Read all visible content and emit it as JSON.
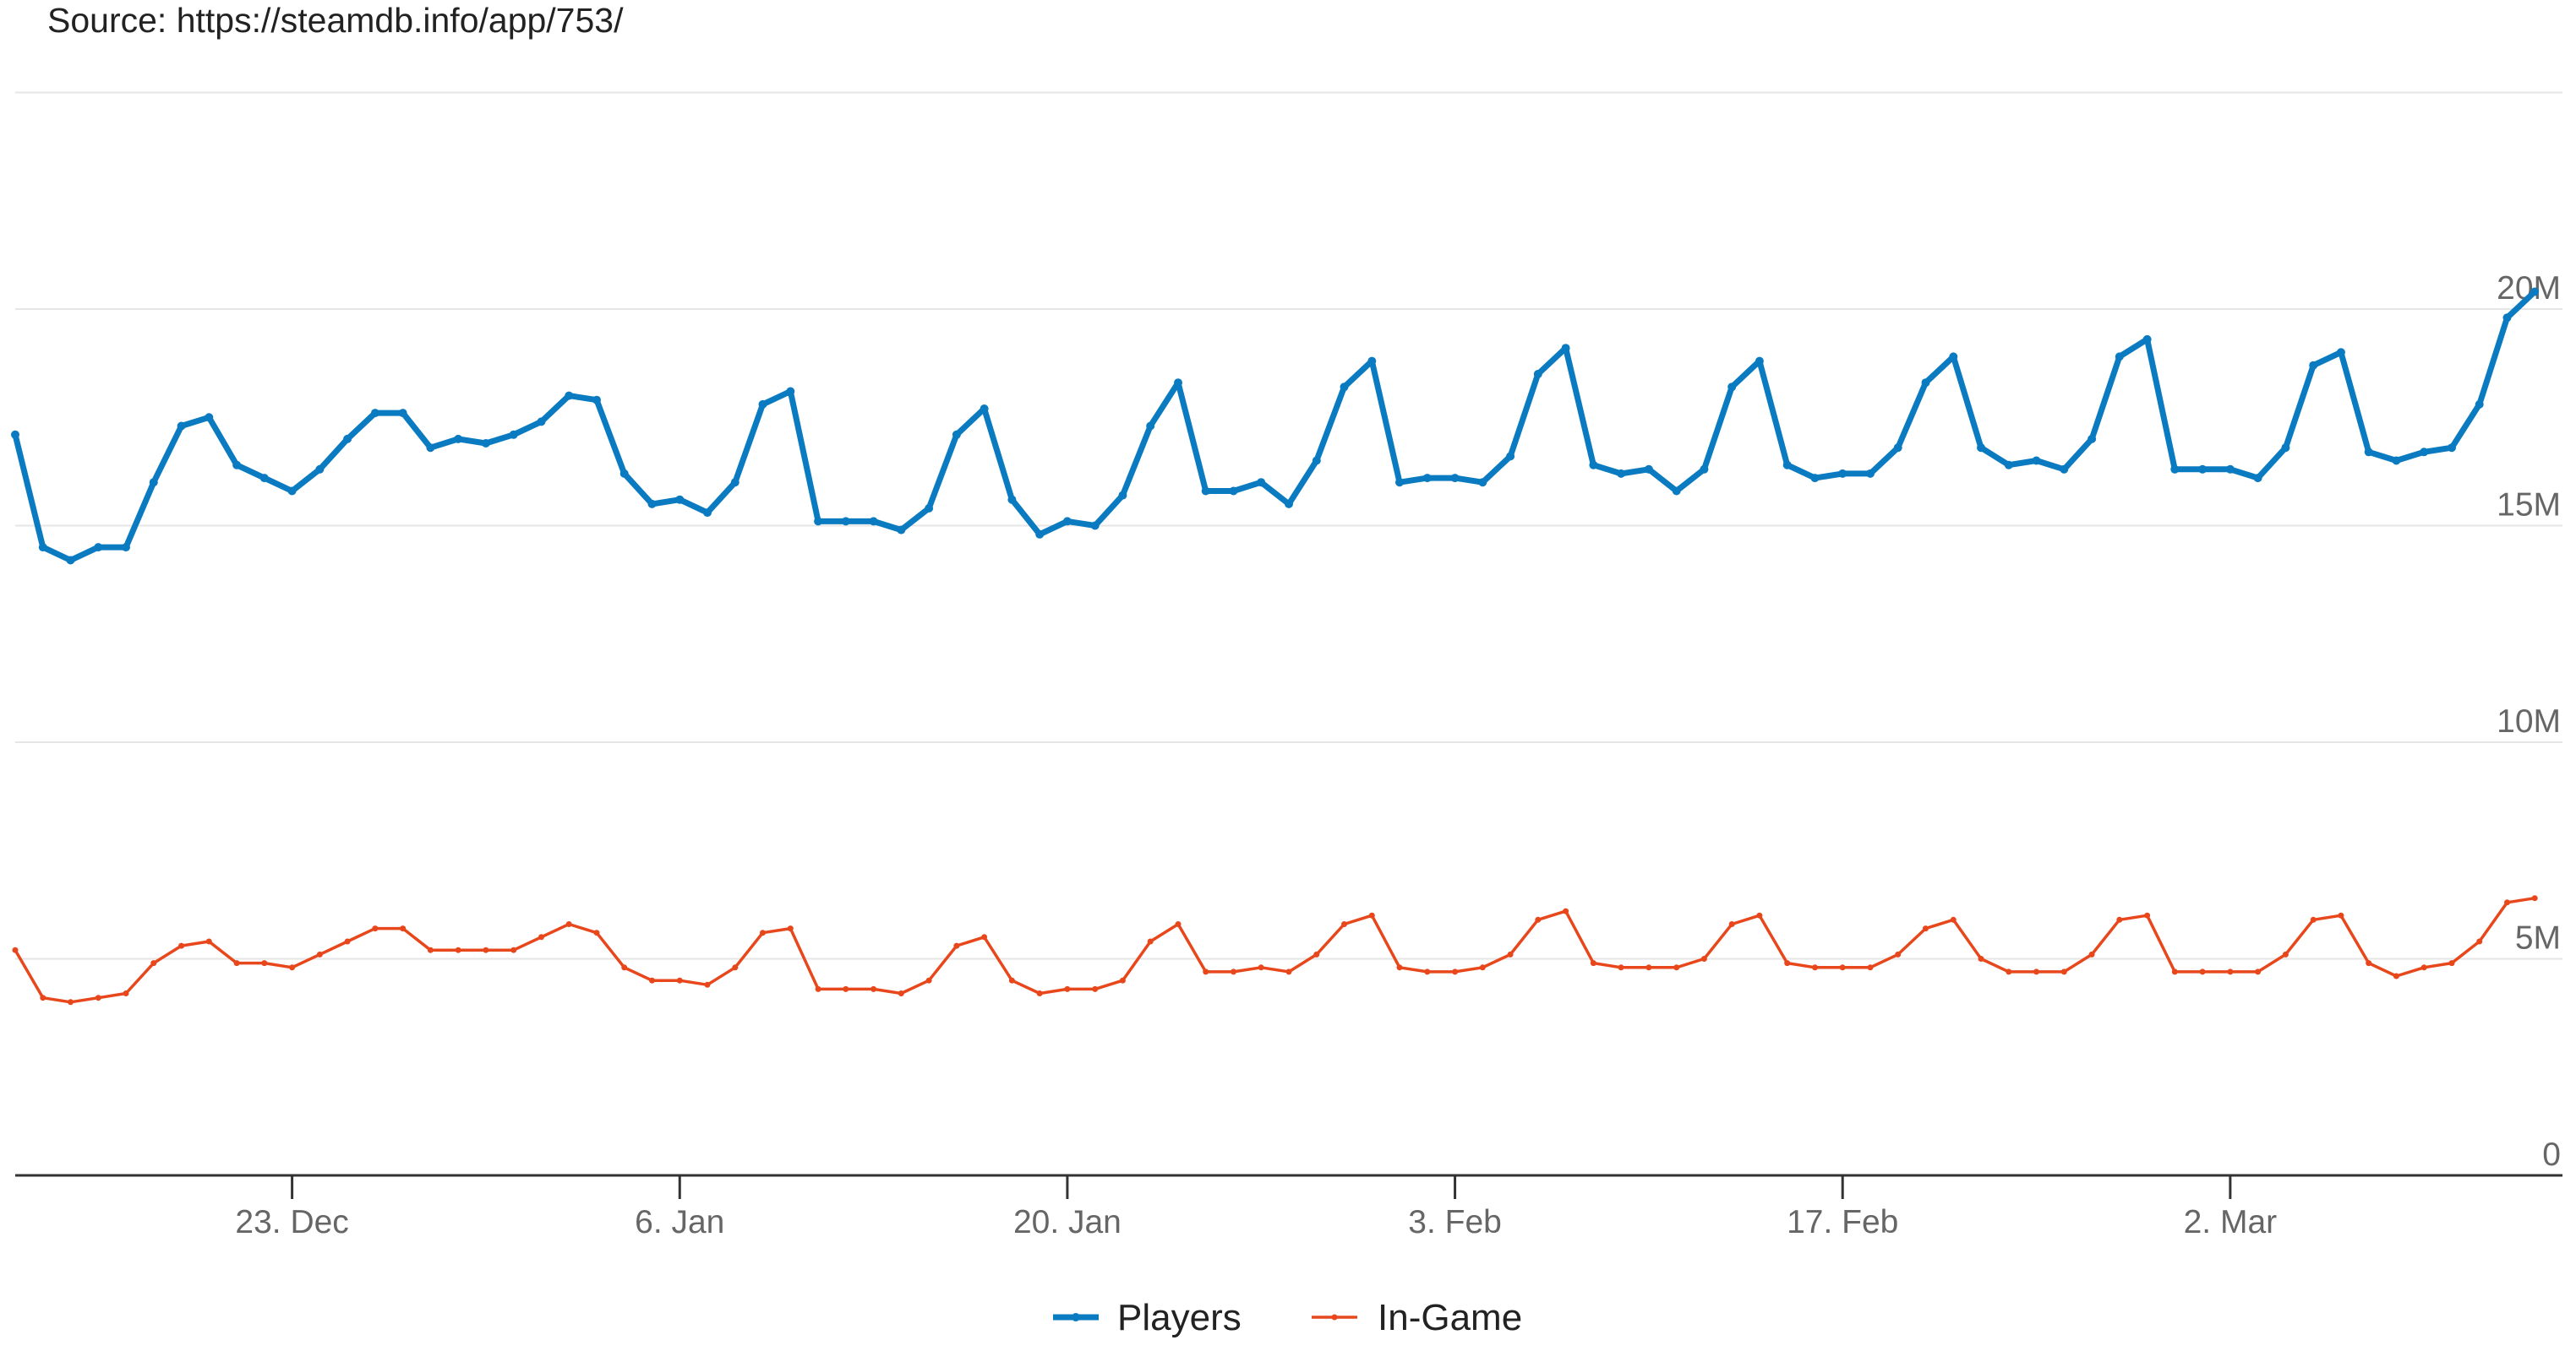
{
  "source_text": "Source: https://steamdb.info/app/753/",
  "colors": {
    "players": "#0b7bc1",
    "in_game": "#e8471c",
    "grid": "#e6e6e6",
    "axis": "#333333"
  },
  "chart_data": {
    "type": "line",
    "title": "",
    "xlabel": "",
    "ylabel": "",
    "x_start": "2019-12-13",
    "x_end": "2020-03-14",
    "x_ticks": [
      {
        "label": "23. Dec",
        "date": "2019-12-23"
      },
      {
        "label": "6. Jan",
        "date": "2020-01-06"
      },
      {
        "label": "20. Jan",
        "date": "2020-01-20"
      },
      {
        "label": "3. Feb",
        "date": "2020-02-03"
      },
      {
        "label": "17. Feb",
        "date": "2020-02-17"
      },
      {
        "label": "2. Mar",
        "date": "2020-03-02"
      }
    ],
    "y_ticks": [
      {
        "label": "0",
        "value": 0
      },
      {
        "label": "5M",
        "value": 5000000
      },
      {
        "label": "10M",
        "value": 10000000
      },
      {
        "label": "15M",
        "value": 15000000
      },
      {
        "label": "20M",
        "value": 20000000
      }
    ],
    "ylim": [
      0,
      25000000
    ],
    "grid": true,
    "legend_position": "bottom",
    "series": [
      {
        "name": "Players",
        "key": "players",
        "points": [
          [
            "2019-12-13",
            17.1
          ],
          [
            "2019-12-14",
            14.5
          ],
          [
            "2019-12-15",
            14.2
          ],
          [
            "2019-12-16",
            14.5
          ],
          [
            "2019-12-17",
            14.5
          ],
          [
            "2019-12-18",
            16.0
          ],
          [
            "2019-12-19",
            17.3
          ],
          [
            "2019-12-20",
            17.5
          ],
          [
            "2019-12-21",
            16.4
          ],
          [
            "2019-12-22",
            16.1
          ],
          [
            "2019-12-23",
            15.8
          ],
          [
            "2019-12-24",
            16.3
          ],
          [
            "2019-12-25",
            17.0
          ],
          [
            "2019-12-26",
            17.6
          ],
          [
            "2019-12-27",
            17.6
          ],
          [
            "2019-12-28",
            16.8
          ],
          [
            "2019-12-29",
            17.0
          ],
          [
            "2019-12-30",
            16.9
          ],
          [
            "2019-12-31",
            17.1
          ],
          [
            "2020-01-01",
            17.4
          ],
          [
            "2020-01-02",
            18.0
          ],
          [
            "2020-01-03",
            17.9
          ],
          [
            "2020-01-04",
            16.2
          ],
          [
            "2020-01-05",
            15.5
          ],
          [
            "2020-01-06",
            15.6
          ],
          [
            "2020-01-07",
            15.3
          ],
          [
            "2020-01-08",
            16.0
          ],
          [
            "2020-01-09",
            17.8
          ],
          [
            "2020-01-10",
            18.1
          ],
          [
            "2020-01-11",
            15.1
          ],
          [
            "2020-01-12",
            15.1
          ],
          [
            "2020-01-13",
            15.1
          ],
          [
            "2020-01-14",
            14.9
          ],
          [
            "2020-01-15",
            15.4
          ],
          [
            "2020-01-16",
            17.1
          ],
          [
            "2020-01-17",
            17.7
          ],
          [
            "2020-01-18",
            15.6
          ],
          [
            "2020-01-19",
            14.8
          ],
          [
            "2020-01-20",
            15.1
          ],
          [
            "2020-01-21",
            15.0
          ],
          [
            "2020-01-22",
            15.7
          ],
          [
            "2020-01-23",
            17.3
          ],
          [
            "2020-01-24",
            18.3
          ],
          [
            "2020-01-25",
            15.8
          ],
          [
            "2020-01-26",
            15.8
          ],
          [
            "2020-01-27",
            16.0
          ],
          [
            "2020-01-28",
            15.5
          ],
          [
            "2020-01-29",
            16.5
          ],
          [
            "2020-01-30",
            18.2
          ],
          [
            "2020-01-31",
            18.8
          ],
          [
            "2020-02-01",
            16.0
          ],
          [
            "2020-02-02",
            16.1
          ],
          [
            "2020-02-03",
            16.1
          ],
          [
            "2020-02-04",
            16.0
          ],
          [
            "2020-02-05",
            16.6
          ],
          [
            "2020-02-06",
            18.5
          ],
          [
            "2020-02-07",
            19.1
          ],
          [
            "2020-02-08",
            16.4
          ],
          [
            "2020-02-09",
            16.2
          ],
          [
            "2020-02-10",
            16.3
          ],
          [
            "2020-02-11",
            15.8
          ],
          [
            "2020-02-12",
            16.3
          ],
          [
            "2020-02-13",
            18.2
          ],
          [
            "2020-02-14",
            18.8
          ],
          [
            "2020-02-15",
            16.4
          ],
          [
            "2020-02-16",
            16.1
          ],
          [
            "2020-02-17",
            16.2
          ],
          [
            "2020-02-18",
            16.2
          ],
          [
            "2020-02-19",
            16.8
          ],
          [
            "2020-02-20",
            18.3
          ],
          [
            "2020-02-21",
            18.9
          ],
          [
            "2020-02-22",
            16.8
          ],
          [
            "2020-02-23",
            16.4
          ],
          [
            "2020-02-24",
            16.5
          ],
          [
            "2020-02-25",
            16.3
          ],
          [
            "2020-02-26",
            17.0
          ],
          [
            "2020-02-27",
            18.9
          ],
          [
            "2020-02-28",
            19.3
          ],
          [
            "2020-02-29",
            16.3
          ],
          [
            "2020-03-01",
            16.3
          ],
          [
            "2020-03-02",
            16.3
          ],
          [
            "2020-03-03",
            16.1
          ],
          [
            "2020-03-04",
            16.8
          ],
          [
            "2020-03-05",
            18.7
          ],
          [
            "2020-03-06",
            19.0
          ],
          [
            "2020-03-07",
            16.7
          ],
          [
            "2020-03-08",
            16.5
          ],
          [
            "2020-03-09",
            16.7
          ],
          [
            "2020-03-10",
            16.8
          ],
          [
            "2020-03-11",
            17.8
          ],
          [
            "2020-03-12",
            19.8
          ],
          [
            "2020-03-13",
            20.4
          ]
        ]
      },
      {
        "name": "In-Game",
        "key": "in_game",
        "points": [
          [
            "2019-12-13",
            5.2
          ],
          [
            "2019-12-14",
            4.1
          ],
          [
            "2019-12-15",
            4.0
          ],
          [
            "2019-12-16",
            4.1
          ],
          [
            "2019-12-17",
            4.2
          ],
          [
            "2019-12-18",
            4.9
          ],
          [
            "2019-12-19",
            5.3
          ],
          [
            "2019-12-20",
            5.4
          ],
          [
            "2019-12-21",
            4.9
          ],
          [
            "2019-12-22",
            4.9
          ],
          [
            "2019-12-23",
            4.8
          ],
          [
            "2019-12-24",
            5.1
          ],
          [
            "2019-12-25",
            5.4
          ],
          [
            "2019-12-26",
            5.7
          ],
          [
            "2019-12-27",
            5.7
          ],
          [
            "2019-12-28",
            5.2
          ],
          [
            "2019-12-29",
            5.2
          ],
          [
            "2019-12-30",
            5.2
          ],
          [
            "2019-12-31",
            5.2
          ],
          [
            "2020-01-01",
            5.5
          ],
          [
            "2020-01-02",
            5.8
          ],
          [
            "2020-01-03",
            5.6
          ],
          [
            "2020-01-04",
            4.8
          ],
          [
            "2020-01-05",
            4.5
          ],
          [
            "2020-01-06",
            4.5
          ],
          [
            "2020-01-07",
            4.4
          ],
          [
            "2020-01-08",
            4.8
          ],
          [
            "2020-01-09",
            5.6
          ],
          [
            "2020-01-10",
            5.7
          ],
          [
            "2020-01-11",
            4.3
          ],
          [
            "2020-01-12",
            4.3
          ],
          [
            "2020-01-13",
            4.3
          ],
          [
            "2020-01-14",
            4.2
          ],
          [
            "2020-01-15",
            4.5
          ],
          [
            "2020-01-16",
            5.3
          ],
          [
            "2020-01-17",
            5.5
          ],
          [
            "2020-01-18",
            4.5
          ],
          [
            "2020-01-19",
            4.2
          ],
          [
            "2020-01-20",
            4.3
          ],
          [
            "2020-01-21",
            4.3
          ],
          [
            "2020-01-22",
            4.5
          ],
          [
            "2020-01-23",
            5.4
          ],
          [
            "2020-01-24",
            5.8
          ],
          [
            "2020-01-25",
            4.7
          ],
          [
            "2020-01-26",
            4.7
          ],
          [
            "2020-01-27",
            4.8
          ],
          [
            "2020-01-28",
            4.7
          ],
          [
            "2020-01-29",
            5.1
          ],
          [
            "2020-01-30",
            5.8
          ],
          [
            "2020-01-31",
            6.0
          ],
          [
            "2020-02-01",
            4.8
          ],
          [
            "2020-02-02",
            4.7
          ],
          [
            "2020-02-03",
            4.7
          ],
          [
            "2020-02-04",
            4.8
          ],
          [
            "2020-02-05",
            5.1
          ],
          [
            "2020-02-06",
            5.9
          ],
          [
            "2020-02-07",
            6.1
          ],
          [
            "2020-02-08",
            4.9
          ],
          [
            "2020-02-09",
            4.8
          ],
          [
            "2020-02-10",
            4.8
          ],
          [
            "2020-02-11",
            4.8
          ],
          [
            "2020-02-12",
            5.0
          ],
          [
            "2020-02-13",
            5.8
          ],
          [
            "2020-02-14",
            6.0
          ],
          [
            "2020-02-15",
            4.9
          ],
          [
            "2020-02-16",
            4.8
          ],
          [
            "2020-02-17",
            4.8
          ],
          [
            "2020-02-18",
            4.8
          ],
          [
            "2020-02-19",
            5.1
          ],
          [
            "2020-02-20",
            5.7
          ],
          [
            "2020-02-21",
            5.9
          ],
          [
            "2020-02-22",
            5.0
          ],
          [
            "2020-02-23",
            4.7
          ],
          [
            "2020-02-24",
            4.7
          ],
          [
            "2020-02-25",
            4.7
          ],
          [
            "2020-02-26",
            5.1
          ],
          [
            "2020-02-27",
            5.9
          ],
          [
            "2020-02-28",
            6.0
          ],
          [
            "2020-02-29",
            4.7
          ],
          [
            "2020-03-01",
            4.7
          ],
          [
            "2020-03-02",
            4.7
          ],
          [
            "2020-03-03",
            4.7
          ],
          [
            "2020-03-04",
            5.1
          ],
          [
            "2020-03-05",
            5.9
          ],
          [
            "2020-03-06",
            6.0
          ],
          [
            "2020-03-07",
            4.9
          ],
          [
            "2020-03-08",
            4.6
          ],
          [
            "2020-03-09",
            4.8
          ],
          [
            "2020-03-10",
            4.9
          ],
          [
            "2020-03-11",
            5.4
          ],
          [
            "2020-03-12",
            6.3
          ],
          [
            "2020-03-13",
            6.4
          ]
        ],
        "unit_scale": 1000000
      }
    ],
    "value_unit": 1000000
  }
}
